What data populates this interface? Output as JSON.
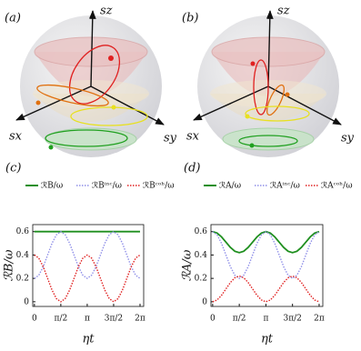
{
  "diagrams": [
    {
      "label": "(a)",
      "axis_z": "sz",
      "axis_x": "sx",
      "axis_y": "sy"
    },
    {
      "label": "(b)",
      "axis_z": "sz",
      "axis_x": "sx",
      "axis_y": "sy"
    }
  ],
  "chart_data": [
    {
      "type": "line",
      "panel_label": "(c)",
      "ylabel": "ℛB/ω",
      "xlabel": "ηt",
      "x": [
        0,
        0.2618,
        0.5236,
        0.7854,
        1.0472,
        1.309,
        1.5708,
        1.8326,
        2.0944,
        2.3562,
        2.618,
        2.8798,
        3.1416,
        3.4034,
        3.6652,
        3.927,
        4.1888,
        4.4506,
        4.7124,
        4.9742,
        5.236,
        5.4978,
        5.7596,
        6.0214,
        6.2832
      ],
      "series": [
        {
          "name": "ℛB/ω",
          "color": "#1f8f1f",
          "linestyle": "solid",
          "values": [
            0.6,
            0.6,
            0.6,
            0.6,
            0.6,
            0.6,
            0.6,
            0.6,
            0.6,
            0.6,
            0.6,
            0.6,
            0.6,
            0.6,
            0.6,
            0.6,
            0.6,
            0.6,
            0.6,
            0.6,
            0.6,
            0.6,
            0.6,
            0.6,
            0.6
          ]
        },
        {
          "name": "ℛBⁱⁿᶜ/ω",
          "color": "#8f8fe8",
          "linestyle": "dotted",
          "values": [
            0.2,
            0.227,
            0.3,
            0.4,
            0.5,
            0.573,
            0.6,
            0.573,
            0.5,
            0.4,
            0.3,
            0.227,
            0.2,
            0.227,
            0.3,
            0.4,
            0.5,
            0.573,
            0.6,
            0.573,
            0.5,
            0.4,
            0.3,
            0.227,
            0.2
          ]
        },
        {
          "name": "ℛBᶜᵒʰ/ω",
          "color": "#e02020",
          "linestyle": "dotted",
          "values": [
            0.4,
            0.373,
            0.3,
            0.2,
            0.1,
            0.027,
            0,
            0.027,
            0.1,
            0.2,
            0.3,
            0.373,
            0.4,
            0.373,
            0.3,
            0.2,
            0.1,
            0.027,
            0,
            0.027,
            0.1,
            0.2,
            0.3,
            0.373,
            0.4
          ]
        }
      ],
      "xlim": [
        -0.1,
        6.5
      ],
      "ylim": [
        -0.04,
        0.66
      ],
      "xticks": [
        0,
        {
          "value": 1.5708,
          "label": "π/2"
        },
        {
          "value": 3.1416,
          "label": "π"
        },
        {
          "value": 4.7124,
          "label": "3π/2"
        },
        {
          "value": 6.2832,
          "label": "2π"
        }
      ],
      "yticks": [
        0,
        0.2,
        0.4,
        0.6
      ]
    },
    {
      "type": "line",
      "panel_label": "(d)",
      "ylabel": "ℛA/ω",
      "xlabel": "ηt",
      "x": [
        0,
        0.2618,
        0.5236,
        0.7854,
        1.0472,
        1.309,
        1.5708,
        1.8326,
        2.0944,
        2.3562,
        2.618,
        2.8798,
        3.1416,
        3.4034,
        3.6652,
        3.927,
        4.1888,
        4.4506,
        4.7124,
        4.9742,
        5.236,
        5.4978,
        5.7596,
        6.0214,
        6.2832
      ],
      "series": [
        {
          "name": "ℛA/ω",
          "color": "#1f8f1f",
          "linestyle": "solid",
          "values": [
            0.6,
            0.588,
            0.555,
            0.51,
            0.465,
            0.432,
            0.42,
            0.432,
            0.465,
            0.51,
            0.555,
            0.588,
            0.6,
            0.588,
            0.555,
            0.51,
            0.465,
            0.432,
            0.42,
            0.432,
            0.465,
            0.51,
            0.555,
            0.588,
            0.6
          ]
        },
        {
          "name": "ℛAⁱⁿᶜ/ω",
          "color": "#8f8fe8",
          "linestyle": "dotted",
          "values": [
            0.6,
            0.573,
            0.5,
            0.4,
            0.3,
            0.227,
            0.2,
            0.227,
            0.3,
            0.4,
            0.5,
            0.573,
            0.6,
            0.573,
            0.5,
            0.4,
            0.3,
            0.227,
            0.2,
            0.227,
            0.3,
            0.4,
            0.5,
            0.573,
            0.6
          ]
        },
        {
          "name": "ℛAᶜᵒʰ/ω",
          "color": "#e02020",
          "linestyle": "dotted",
          "values": [
            0,
            0.015,
            0.055,
            0.11,
            0.165,
            0.205,
            0.22,
            0.205,
            0.165,
            0.11,
            0.055,
            0.015,
            0,
            0.015,
            0.055,
            0.11,
            0.165,
            0.205,
            0.22,
            0.205,
            0.165,
            0.11,
            0.055,
            0.015,
            0
          ]
        }
      ],
      "xlim": [
        -0.1,
        6.5
      ],
      "ylim": [
        -0.04,
        0.66
      ],
      "xticks": [
        0,
        {
          "value": 1.5708,
          "label": "π/2"
        },
        {
          "value": 3.1416,
          "label": "π"
        },
        {
          "value": 4.7124,
          "label": "3π/2"
        },
        {
          "value": 6.2832,
          "label": "2π"
        }
      ],
      "yticks": [
        0,
        0.2,
        0.4,
        0.6
      ]
    }
  ]
}
